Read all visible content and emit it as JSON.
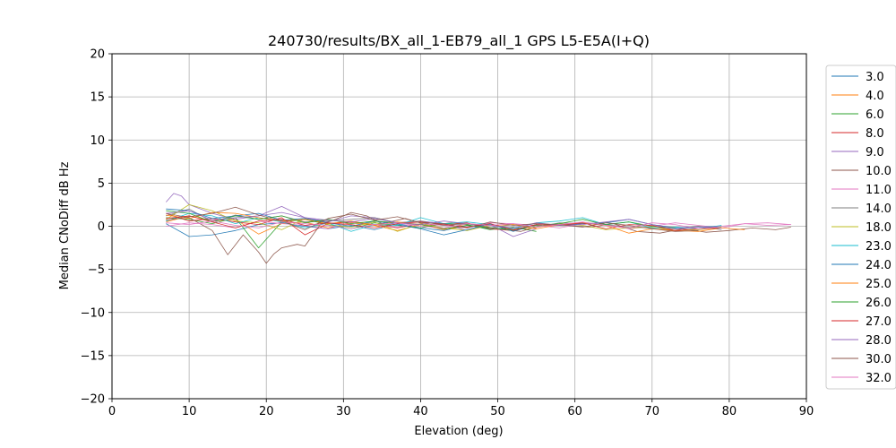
{
  "chart_data": {
    "type": "line",
    "title": "240730/results/BX_all_1-EB79_all_1 GPS L5-E5A(I+Q)",
    "xlabel": "Elevation (deg)",
    "ylabel": "Median CNoDiff dB Hz",
    "xlim": [
      0,
      90
    ],
    "ylim": [
      -20,
      20
    ],
    "xticks": [
      "0",
      "10",
      "20",
      "30",
      "40",
      "50",
      "60",
      "70",
      "80",
      "90"
    ],
    "yticks": [
      "20",
      "15",
      "10",
      "5",
      "0",
      "−5",
      "−10",
      "−15",
      "−20"
    ],
    "grid": true,
    "legend_position": "right",
    "series": [
      {
        "name": "3.0",
        "color": "#1f77b4",
        "x": [
          7,
          10,
          13,
          16,
          19,
          22,
          25,
          28,
          31,
          34,
          37,
          40,
          43,
          46,
          49,
          52
        ],
        "y": [
          0.3,
          -1.2,
          -1.0,
          -0.5,
          0.2,
          0.4,
          0.0,
          -0.3,
          0.1,
          -0.4,
          0.3,
          -0.2,
          -0.5,
          0.1,
          -0.3,
          -0.2
        ]
      },
      {
        "name": "4.0",
        "color": "#ff7f0e",
        "x": [
          7,
          10,
          13,
          16,
          19,
          22,
          25,
          28,
          31,
          34,
          37,
          40,
          43,
          46,
          49,
          52,
          55
        ],
        "y": [
          0.5,
          1.2,
          0.6,
          0.8,
          -0.9,
          0.3,
          0.5,
          -0.2,
          0.4,
          0.1,
          -0.5,
          0.2,
          -0.3,
          -0.1,
          0.2,
          -0.4,
          -0.2
        ]
      },
      {
        "name": "6.0",
        "color": "#2ca02c",
        "x": [
          7,
          10,
          13,
          16,
          19,
          22,
          25,
          28,
          31,
          34,
          37,
          40,
          43,
          46,
          49,
          52,
          55
        ],
        "y": [
          1.0,
          0.8,
          0.3,
          1.0,
          -2.5,
          0.5,
          0.8,
          0.2,
          -0.3,
          0.4,
          0.1,
          -0.2,
          0.3,
          0.2,
          -0.4,
          -0.1,
          -0.6
        ]
      },
      {
        "name": "8.0",
        "color": "#d62728",
        "x": [
          7,
          10,
          13,
          16,
          19,
          22,
          25,
          28,
          31,
          34,
          37,
          40,
          43,
          46,
          49,
          52,
          55
        ],
        "y": [
          1.5,
          0.6,
          0.9,
          0.5,
          0.2,
          1.0,
          -1.0,
          0.3,
          0.5,
          0.2,
          -0.2,
          0.3,
          0.1,
          0.4,
          -0.3,
          -0.5,
          0.2
        ]
      },
      {
        "name": "9.0",
        "color": "#9467bd",
        "x": [
          7,
          8,
          9,
          10,
          13,
          16,
          19,
          22,
          25,
          28,
          31,
          34,
          37,
          40,
          43,
          46,
          49,
          52,
          55
        ],
        "y": [
          2.8,
          3.8,
          3.5,
          2.5,
          1.5,
          0.8,
          1.2,
          2.3,
          1.0,
          0.5,
          1.2,
          1.0,
          0.4,
          0.6,
          0.3,
          -0.5,
          0.2,
          -1.2,
          -0.3
        ]
      },
      {
        "name": "10.0",
        "color": "#8c564b",
        "x": [
          7,
          10,
          13,
          15,
          17,
          19,
          20,
          21,
          22,
          24,
          25,
          27,
          29,
          31,
          33,
          35,
          38,
          41,
          44,
          47,
          50,
          53,
          56,
          59,
          62,
          65,
          68,
          71,
          74,
          77,
          80,
          83,
          86,
          88
        ],
        "y": [
          1.5,
          1.0,
          -0.5,
          -3.3,
          -1.0,
          -3.0,
          -4.3,
          -3.2,
          -2.5,
          -2.1,
          -2.3,
          0.2,
          0.8,
          1.6,
          1.2,
          0.3,
          0.9,
          0.1,
          0.4,
          0.2,
          -0.3,
          -0.6,
          0.2,
          0.1,
          -0.1,
          0.3,
          -0.6,
          -0.8,
          -0.3,
          -0.7,
          -0.5,
          -0.2,
          -0.4,
          -0.1
        ]
      },
      {
        "name": "11.0",
        "color": "#e377c2",
        "x": [
          7,
          10,
          13,
          16,
          19,
          22,
          25,
          28,
          31,
          34,
          37,
          40,
          43,
          46,
          49,
          52,
          55,
          58,
          61,
          64,
          67,
          70,
          73,
          76,
          79,
          82,
          85,
          88
        ],
        "y": [
          0.0,
          0.4,
          0.2,
          -0.2,
          0.6,
          0.3,
          0.1,
          -0.3,
          0.5,
          0.2,
          -0.1,
          0.3,
          0.1,
          -0.2,
          0.4,
          0.3,
          0.1,
          -0.2,
          0.3,
          0.2,
          -0.3,
          0.0,
          0.4,
          0.1,
          -0.2,
          0.3,
          0.4,
          0.2
        ]
      },
      {
        "name": "14.0",
        "color": "#7f7f7f",
        "x": [
          7,
          10,
          13,
          16,
          19,
          22,
          25,
          28,
          31,
          34,
          37,
          40,
          43,
          46,
          49,
          52,
          55,
          58,
          61,
          64,
          67,
          70,
          73,
          76,
          79
        ],
        "y": [
          1.2,
          2.0,
          0.5,
          1.3,
          0.8,
          1.2,
          0.5,
          0.6,
          0.8,
          1.0,
          0.4,
          0.6,
          0.1,
          0.3,
          -0.2,
          0.2,
          -0.1,
          0.4,
          0.3,
          0.2,
          -0.1,
          -0.2,
          -0.3,
          0.0,
          -0.4
        ]
      },
      {
        "name": "18.0",
        "color": "#bcbd22",
        "x": [
          7,
          10,
          13,
          16,
          19,
          22,
          25,
          28,
          31,
          34,
          37,
          40,
          43,
          46,
          49,
          52,
          55,
          58,
          61,
          64,
          67,
          70,
          73,
          76,
          79
        ],
        "y": [
          0.8,
          2.5,
          1.8,
          0.6,
          0.4,
          -0.4,
          0.9,
          0.2,
          -0.1,
          0.5,
          -0.6,
          0.3,
          -0.2,
          -0.5,
          0.1,
          0.2,
          -0.1,
          0.3,
          0.1,
          -0.4,
          -0.2,
          -0.1,
          -0.5,
          -0.4,
          -0.1
        ]
      },
      {
        "name": "23.0",
        "color": "#17becf",
        "x": [
          7,
          10,
          13,
          16,
          19,
          22,
          25,
          28,
          31,
          34,
          37,
          40,
          43,
          46,
          49,
          52,
          55,
          58,
          61,
          64,
          67,
          70,
          73,
          76,
          79
        ],
        "y": [
          0.6,
          1.5,
          1.2,
          0.3,
          1.0,
          0.5,
          -0.2,
          0.4,
          -0.6,
          0.2,
          0.1,
          1.0,
          0.3,
          0.5,
          0.2,
          -0.3,
          0.4,
          0.6,
          1.0,
          0.2,
          0.5,
          -0.2,
          -0.1,
          -0.3,
          0.1
        ]
      },
      {
        "name": "24.0",
        "color": "#1f77b4",
        "x": [
          7,
          10,
          13,
          16,
          19,
          22,
          25,
          28,
          31,
          34,
          37,
          40,
          43,
          46,
          49,
          52,
          55,
          58,
          61,
          64,
          67,
          70,
          73,
          76,
          79
        ],
        "y": [
          2.0,
          1.8,
          0.9,
          1.2,
          1.5,
          0.7,
          0.9,
          0.4,
          0.0,
          0.6,
          0.2,
          -0.3,
          -1.0,
          -0.4,
          0.3,
          -0.6,
          0.2,
          0.1,
          0.3,
          0.4,
          0.8,
          0.2,
          -0.2,
          -0.1,
          0.0
        ]
      },
      {
        "name": "25.0",
        "color": "#ff7f0e",
        "x": [
          7,
          10,
          13,
          16,
          19,
          22,
          25,
          28,
          31,
          34,
          37,
          40,
          43,
          46,
          49,
          52,
          55,
          58,
          61,
          64,
          67,
          70,
          73,
          76,
          79,
          82
        ],
        "y": [
          1.3,
          0.9,
          1.6,
          1.5,
          1.0,
          0.6,
          0.8,
          0.3,
          0.6,
          0.1,
          0.5,
          0.2,
          -0.4,
          0.3,
          0.1,
          0.2,
          -0.3,
          0.2,
          0.4,
          0.1,
          -0.8,
          -0.3,
          -0.5,
          -0.6,
          -0.2,
          -0.4
        ]
      },
      {
        "name": "26.0",
        "color": "#2ca02c",
        "x": [
          7,
          10,
          13,
          16,
          19,
          22,
          25,
          28,
          31,
          34,
          37,
          40,
          43,
          46,
          49,
          52,
          55,
          58,
          61,
          64,
          67,
          70,
          73
        ],
        "y": [
          1.8,
          1.5,
          0.5,
          1.2,
          0.8,
          1.2,
          0.4,
          0.8,
          0.3,
          0.6,
          0.4,
          0.2,
          -0.3,
          0.1,
          -0.2,
          -0.4,
          0.1,
          0.3,
          0.8,
          0.2,
          0.5,
          0.0,
          -0.2
        ]
      },
      {
        "name": "27.0",
        "color": "#d62728",
        "x": [
          7,
          10,
          13,
          16,
          19,
          22,
          25,
          28,
          31,
          34,
          37,
          40,
          43,
          46,
          49,
          52,
          55,
          58,
          61,
          64,
          67,
          70,
          73,
          76,
          79
        ],
        "y": [
          0.9,
          1.2,
          0.5,
          -0.2,
          0.6,
          0.8,
          0.1,
          0.4,
          0.2,
          -0.2,
          0.3,
          0.5,
          0.2,
          -0.1,
          0.3,
          -0.4,
          0.2,
          0.1,
          0.4,
          -0.3,
          0.2,
          0.1,
          -0.5,
          -0.3,
          -0.2
        ]
      },
      {
        "name": "28.0",
        "color": "#9467bd",
        "x": [
          7,
          10,
          13,
          16,
          19,
          22,
          25,
          28,
          31,
          34,
          37,
          40,
          43,
          46,
          49,
          52,
          55,
          58,
          61,
          64,
          67,
          70,
          73,
          76,
          79
        ],
        "y": [
          1.5,
          1.8,
          0.7,
          1.0,
          1.2,
          1.6,
          1.0,
          0.7,
          0.5,
          0.9,
          0.4,
          0.2,
          0.6,
          0.3,
          0.1,
          -0.2,
          0.4,
          0.1,
          0.2,
          0.5,
          0.8,
          0.2,
          -0.3,
          -0.1,
          -0.2
        ]
      },
      {
        "name": "30.0",
        "color": "#8c564b",
        "x": [
          7,
          10,
          13,
          16,
          19,
          22,
          25,
          28,
          31,
          34,
          37,
          40,
          43,
          46,
          49,
          52,
          55,
          58,
          61,
          64,
          67,
          70,
          73,
          76
        ],
        "y": [
          0.7,
          1.1,
          1.5,
          2.2,
          1.3,
          0.6,
          -0.4,
          0.9,
          1.4,
          0.7,
          1.1,
          0.4,
          0.3,
          -0.2,
          0.5,
          0.1,
          0.3,
          0.2,
          -0.1,
          0.4,
          0.1,
          -0.3,
          -0.6,
          -0.5
        ]
      },
      {
        "name": "32.0",
        "color": "#e377c2",
        "x": [
          7,
          10,
          13,
          16,
          19,
          22,
          25,
          28,
          31,
          34,
          37,
          40,
          43,
          46,
          49,
          52,
          55,
          58,
          61,
          64,
          67,
          70,
          73,
          76,
          79,
          82,
          85,
          88
        ],
        "y": [
          0.4,
          0.2,
          0.6,
          0.1,
          -0.2,
          0.5,
          0.3,
          0.1,
          -0.3,
          0.2,
          0.4,
          0.0,
          -0.2,
          0.3,
          0.1,
          0.3,
          -0.1,
          0.2,
          0.5,
          0.1,
          -0.2,
          0.4,
          0.2,
          -0.3,
          0.0,
          0.3,
          0.1,
          0.2
        ]
      }
    ]
  }
}
